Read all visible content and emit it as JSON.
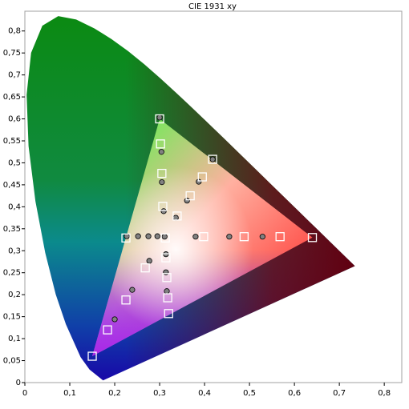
{
  "chart_data": {
    "type": "scatter",
    "title": "CIE 1931 xy",
    "xlim": [
      0,
      0.839
    ],
    "ylim": [
      0,
      0.845
    ],
    "xticks": [
      0,
      {
        "value": 0.1,
        "label": "0,1"
      },
      {
        "value": 0.2,
        "label": "0,2"
      },
      {
        "value": 0.3,
        "label": "0,3"
      },
      {
        "value": 0.4,
        "label": "0,4"
      },
      {
        "value": 0.5,
        "label": "0,5"
      },
      {
        "value": 0.6,
        "label": "0,6"
      },
      {
        "value": 0.7,
        "label": "0,7"
      },
      {
        "value": 0.8,
        "label": "0,8"
      }
    ],
    "yticks": [
      0,
      {
        "value": 0.05,
        "label": "0,05"
      },
      {
        "value": 0.1,
        "label": "0,1"
      },
      {
        "value": 0.15,
        "label": "0,15"
      },
      {
        "value": 0.2,
        "label": "0,2"
      },
      {
        "value": 0.25,
        "label": "0,25"
      },
      {
        "value": 0.3,
        "label": "0,3"
      },
      {
        "value": 0.35,
        "label": "0,35"
      },
      {
        "value": 0.4,
        "label": "0,4"
      },
      {
        "value": 0.45,
        "label": "0,45"
      },
      {
        "value": 0.5,
        "label": "0,5"
      },
      {
        "value": 0.55,
        "label": "0,55"
      },
      {
        "value": 0.6,
        "label": "0,6"
      },
      {
        "value": 0.65,
        "label": "0,65"
      },
      {
        "value": 0.7,
        "label": "0,7"
      },
      {
        "value": 0.75,
        "label": "0,75"
      },
      {
        "value": 0.8,
        "label": "0,8"
      }
    ],
    "locus": {
      "x": [
        0.1741,
        0.144,
        0.1241,
        0.0913,
        0.0687,
        0.0454,
        0.0235,
        0.0082,
        0.0039,
        0.0139,
        0.0389,
        0.0743,
        0.1142,
        0.1547,
        0.1929,
        0.2296,
        0.2658,
        0.3016,
        0.3373,
        0.3731,
        0.4087,
        0.4441,
        0.4788,
        0.5125,
        0.5448,
        0.5752,
        0.6029,
        0.627,
        0.6482,
        0.6658,
        0.6801,
        0.7347
      ],
      "y": [
        0.005,
        0.0297,
        0.0578,
        0.1327,
        0.2007,
        0.295,
        0.4127,
        0.5384,
        0.6548,
        0.7502,
        0.812,
        0.8338,
        0.8262,
        0.8059,
        0.7816,
        0.7543,
        0.7243,
        0.6923,
        0.6589,
        0.6245,
        0.5896,
        0.5547,
        0.5202,
        0.4866,
        0.4544,
        0.4242,
        0.3965,
        0.3725,
        0.3514,
        0.334,
        0.3197,
        0.2653
      ]
    },
    "series": [
      {
        "marker": "square",
        "color": "#ffffff",
        "x": [
          0.64,
          0.3,
          0.15,
          0.3127,
          0.225,
          0.398,
          0.488,
          0.568,
          0.418,
          0.395,
          0.368,
          0.339,
          0.302,
          0.305,
          0.307,
          0.314,
          0.316,
          0.318,
          0.32,
          0.184,
          0.225,
          0.268
        ],
        "y": [
          0.33,
          0.6,
          0.06,
          0.329,
          0.329,
          0.332,
          0.332,
          0.332,
          0.508,
          0.468,
          0.425,
          0.379,
          0.543,
          0.476,
          0.401,
          0.284,
          0.239,
          0.193,
          0.157,
          0.12,
          0.188,
          0.261
        ]
      },
      {
        "marker": "circle",
        "color": "#808080",
        "x": [
          0.3,
          0.227,
          0.252,
          0.275,
          0.295,
          0.311,
          0.38,
          0.455,
          0.529,
          0.418,
          0.387,
          0.361,
          0.336,
          0.304,
          0.305,
          0.309,
          0.314,
          0.314,
          0.316,
          0.2,
          0.239,
          0.277
        ],
        "y": [
          0.603,
          0.333,
          0.333,
          0.333,
          0.333,
          0.332,
          0.332,
          0.332,
          0.332,
          0.508,
          0.457,
          0.414,
          0.375,
          0.525,
          0.456,
          0.39,
          0.292,
          0.251,
          0.208,
          0.144,
          0.211,
          0.277
        ]
      }
    ]
  }
}
